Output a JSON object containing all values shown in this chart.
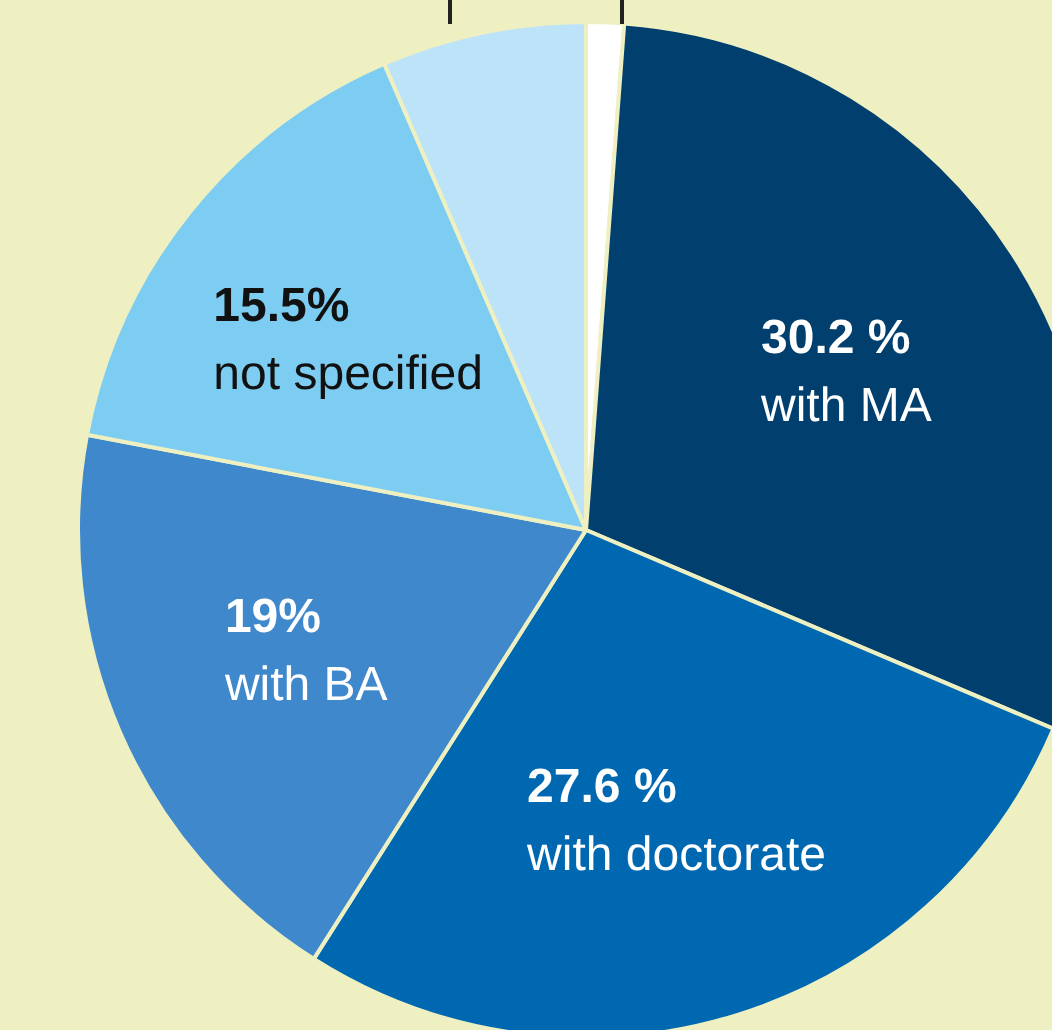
{
  "chart_data": {
    "type": "pie",
    "categories": [
      null,
      "with MA",
      "with doctorate",
      "with BA",
      "not specified",
      null
    ],
    "values": [
      1.2,
      30.2,
      27.6,
      19,
      15.5,
      6.5
    ],
    "value_labels": [
      null,
      "30.2 %",
      "27.6 %",
      "19%",
      "15.5%",
      null
    ],
    "colors": [
      "#ffffff",
      "#003f6e",
      "#0068b1",
      "#4088cc",
      "#7dcdf2",
      "#bde3f8"
    ],
    "legend": false
  }
}
